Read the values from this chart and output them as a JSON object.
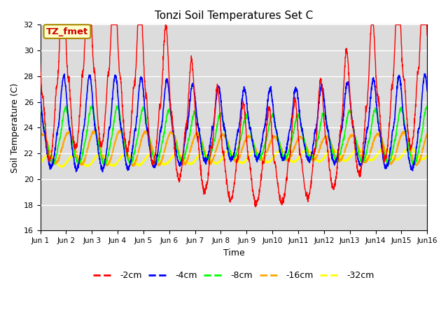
{
  "title": "Tonzi Soil Temperatures Set C",
  "xlabel": "Time",
  "ylabel": "Soil Temperature (C)",
  "ylim": [
    16,
    32
  ],
  "yticks": [
    16,
    18,
    20,
    22,
    24,
    26,
    28,
    30,
    32
  ],
  "legend_labels": [
    "-2cm",
    "-4cm",
    "-8cm",
    "-16cm",
    "-32cm"
  ],
  "legend_colors": [
    "red",
    "blue",
    "lime",
    "orange",
    "yellow"
  ],
  "annotation_text": "TZ_fmet",
  "annotation_bg": "#ffffcc",
  "annotation_border": "#aa8800",
  "annotation_text_color": "#cc0000",
  "bg_color": "#dcdcdc",
  "n_days": 15,
  "samples_per_day": 144,
  "figsize": [
    6.4,
    4.8
  ],
  "dpi": 100
}
